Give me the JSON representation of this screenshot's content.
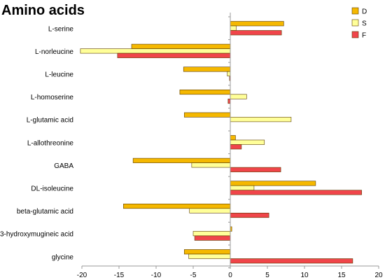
{
  "chart_data": {
    "type": "bar",
    "orientation": "horizontal",
    "title": "Amino acids",
    "xlabel": "",
    "ylabel": "",
    "xlim": [
      -20,
      20
    ],
    "xticks": [
      -20,
      -15,
      -10,
      -5,
      0,
      5,
      10,
      15,
      20
    ],
    "legend_position": "top-right",
    "grid": false,
    "categories": [
      "L-serine",
      "L-norleucine",
      "L-leucine",
      "L-homoserine",
      "L-glutamic acid",
      "L-allothreonine",
      "GABA",
      "DL-isoleucine",
      "beta-glutamic acid",
      "3-hydroxymugineic acid",
      "glycine"
    ],
    "series": [
      {
        "name": "D",
        "color": "#f5b800",
        "values": [
          7.2,
          -13.3,
          -6.3,
          -6.8,
          -6.2,
          0.7,
          -13.1,
          11.5,
          -14.4,
          0.2,
          -6.2
        ]
      },
      {
        "name": "S",
        "color": "#ffff99",
        "values": [
          0.8,
          -20.2,
          -0.4,
          2.2,
          8.2,
          4.6,
          -5.2,
          3.2,
          -5.5,
          -5.0,
          -5.6
        ]
      },
      {
        "name": "F",
        "color": "#f0454a",
        "values": [
          6.9,
          -15.2,
          -0.1,
          -0.3,
          0,
          1.5,
          6.8,
          17.7,
          5.2,
          -4.8,
          16.5
        ]
      }
    ]
  }
}
